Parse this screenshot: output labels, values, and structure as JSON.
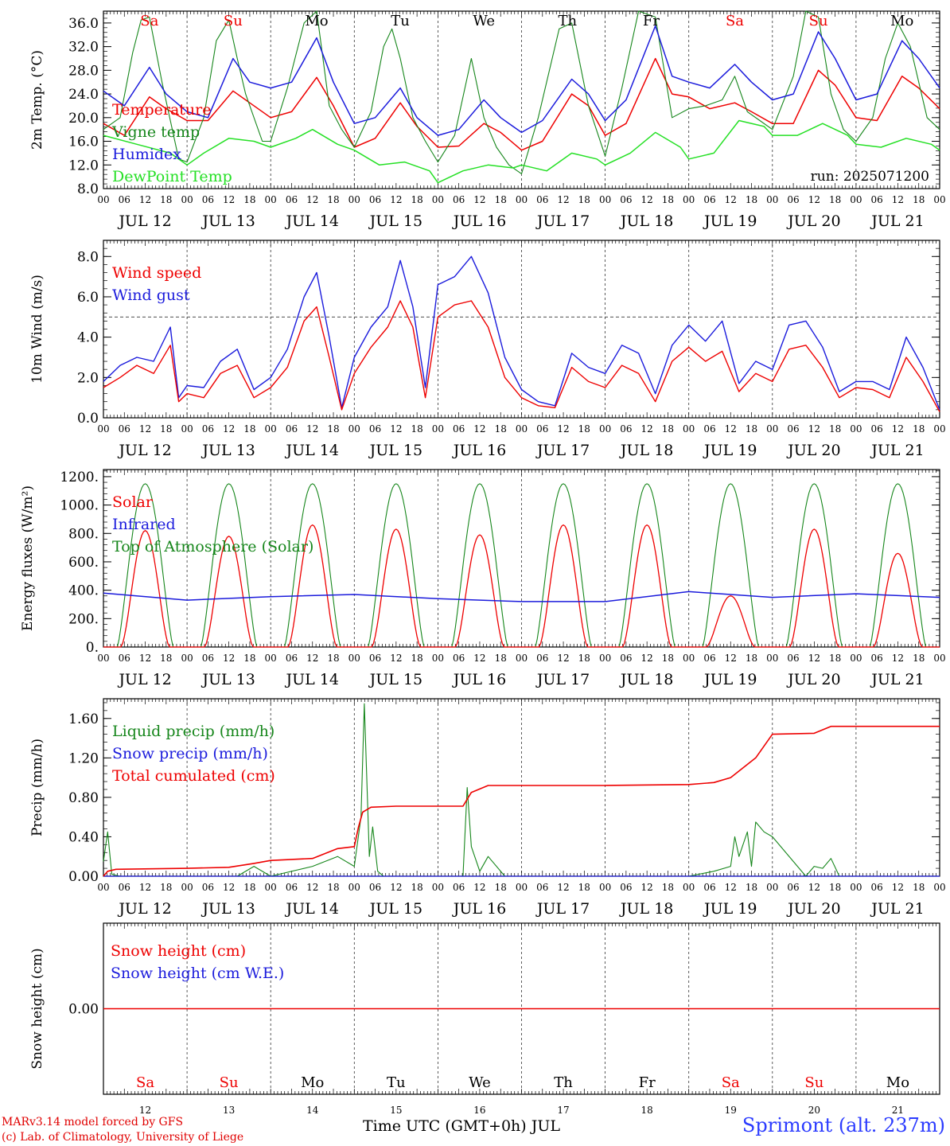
{
  "colors": {
    "red": "#ee0000",
    "green": "#16861b",
    "blue": "#1b1bdc",
    "light_green": "#25e025",
    "weekend": "#ee0000",
    "weekday": "#000000"
  },
  "days": [
    {
      "abbr": "Sa",
      "date": "JUL 12",
      "num": "12",
      "weekend": true
    },
    {
      "abbr": "Su",
      "date": "JUL 13",
      "num": "13",
      "weekend": true
    },
    {
      "abbr": "Mo",
      "date": "JUL 14",
      "num": "14",
      "weekend": false
    },
    {
      "abbr": "Tu",
      "date": "JUL 15",
      "num": "15",
      "weekend": false
    },
    {
      "abbr": "We",
      "date": "JUL 16",
      "num": "16",
      "weekend": false
    },
    {
      "abbr": "Th",
      "date": "JUL 17",
      "num": "17",
      "weekend": false
    },
    {
      "abbr": "Fr",
      "date": "JUL 18",
      "num": "18",
      "weekend": false
    },
    {
      "abbr": "Sa",
      "date": "JUL 19",
      "num": "19",
      "weekend": true
    },
    {
      "abbr": "Su",
      "date": "JUL 20",
      "num": "20",
      "weekend": true
    },
    {
      "abbr": "Mo",
      "date": "JUL 21",
      "num": "21",
      "weekend": false
    }
  ],
  "hour_ticks": [
    "00",
    "06",
    "12",
    "18"
  ],
  "run_label": "run: 2025071200",
  "footer": {
    "line1": "MARv3.14 model forced by GFS",
    "line2": "(c) Lab. of Climatology, University of Liege",
    "xtitle": "Time UTC (GMT+0h) JUL",
    "station": "Sprimont (alt. 237m)"
  },
  "chart_data": [
    {
      "type": "line",
      "ylabel": "2m Temp. (°C)",
      "ylim": [
        8,
        38
      ],
      "yticks": [
        "8.0",
        "12.0",
        "16.0",
        "20.0",
        "24.0",
        "28.0",
        "32.0",
        "36.0"
      ],
      "x_unit": "days since JUL 12 00 UTC (0-10)",
      "series": [
        {
          "name": "Temperature",
          "color": "red",
          "x": [
            0,
            0.25,
            0.55,
            0.75,
            1,
            1.25,
            1.55,
            1.75,
            2,
            2.25,
            2.55,
            2.75,
            3,
            3.25,
            3.55,
            3.75,
            4,
            4.25,
            4.55,
            4.75,
            5,
            5.25,
            5.6,
            5.8,
            6,
            6.25,
            6.6,
            6.8,
            7,
            7.25,
            7.55,
            7.75,
            8,
            8.25,
            8.55,
            8.75,
            9,
            9.25,
            9.55,
            9.75,
            10
          ],
          "y": [
            19,
            17,
            23.5,
            21.5,
            19.5,
            19.5,
            24.5,
            22.5,
            20,
            21,
            26.8,
            22,
            15,
            16.5,
            22.5,
            18.5,
            15,
            15.2,
            19,
            17.5,
            14.5,
            16,
            24,
            22,
            17,
            19,
            30,
            24,
            23.5,
            21.5,
            22.5,
            21,
            19,
            19,
            28,
            25.5,
            20,
            19.5,
            27,
            25,
            21.5
          ]
        },
        {
          "name": "Vigne temp",
          "color": "green",
          "x": [
            0,
            0.2,
            0.35,
            0.45,
            0.55,
            0.7,
            0.9,
            1,
            1.2,
            1.35,
            1.5,
            1.6,
            1.7,
            1.9,
            2,
            2.2,
            2.4,
            2.55,
            2.7,
            2.85,
            3,
            3.2,
            3.35,
            3.45,
            3.55,
            3.7,
            3.85,
            4,
            4.2,
            4.4,
            4.55,
            4.7,
            4.85,
            5,
            5.2,
            5.45,
            5.6,
            5.8,
            6,
            6.2,
            6.4,
            6.6,
            6.8,
            7,
            7.2,
            7.4,
            7.55,
            7.7,
            7.85,
            8,
            8.25,
            8.4,
            8.55,
            8.7,
            8.85,
            9,
            9.2,
            9.35,
            9.5,
            9.65,
            9.85,
            10
          ],
          "y": [
            18,
            20,
            31,
            36.5,
            37,
            26,
            13,
            12.5,
            20,
            33,
            36.5,
            30,
            24,
            16,
            16,
            25,
            36,
            38,
            22,
            18,
            15,
            21,
            32,
            35,
            30,
            20,
            16,
            12.5,
            17,
            30,
            20,
            15,
            12,
            10.5,
            20,
            35,
            36,
            22,
            13.5,
            25,
            38,
            37,
            20,
            21.5,
            22,
            23,
            27,
            21,
            19.5,
            18,
            27,
            39,
            37,
            24,
            18,
            16,
            20,
            30,
            36,
            32,
            20,
            18
          ]
        },
        {
          "name": "Humidex",
          "color": "blue",
          "x": [
            0,
            0.25,
            0.55,
            0.75,
            1,
            1.25,
            1.55,
            1.75,
            2,
            2.25,
            2.55,
            2.75,
            3,
            3.25,
            3.55,
            3.75,
            4,
            4.25,
            4.55,
            4.75,
            5,
            5.25,
            5.6,
            5.8,
            6,
            6.25,
            6.6,
            6.8,
            7,
            7.25,
            7.55,
            7.75,
            8,
            8.25,
            8.55,
            8.75,
            9,
            9.25,
            9.55,
            9.75,
            10
          ],
          "y": [
            24.5,
            22,
            28.5,
            24,
            21,
            20,
            30,
            26,
            25,
            26,
            33.5,
            26,
            19,
            20,
            25,
            20,
            17,
            18,
            23,
            20,
            17.5,
            19.5,
            26.5,
            24,
            19.5,
            23,
            35.5,
            27,
            26,
            25,
            29,
            26,
            23,
            24,
            34.5,
            30,
            23,
            24,
            33,
            30,
            25
          ]
        },
        {
          "name": "DewPoint Temp",
          "color": "light_green",
          "x": [
            0,
            0.4,
            0.8,
            1,
            1.2,
            1.5,
            1.8,
            2,
            2.3,
            2.5,
            2.8,
            3,
            3.3,
            3.6,
            3.9,
            4,
            4.3,
            4.6,
            4.9,
            5,
            5.3,
            5.6,
            5.9,
            6,
            6.3,
            6.6,
            6.9,
            7,
            7.3,
            7.6,
            7.9,
            8,
            8.3,
            8.6,
            8.9,
            9,
            9.3,
            9.6,
            9.9,
            10
          ],
          "y": [
            17,
            15.5,
            14,
            12,
            14,
            16.5,
            16,
            15,
            16.5,
            18,
            15.5,
            14.5,
            12,
            12.5,
            11,
            9,
            11,
            12,
            11.5,
            12,
            11,
            14,
            13,
            12,
            14,
            17.5,
            15,
            13,
            14,
            19.5,
            18.5,
            17,
            17,
            19,
            17,
            15.5,
            15,
            16.5,
            15.5,
            14.5
          ]
        }
      ],
      "legend": [
        "Temperature",
        "Vigne temp",
        "Humidex",
        "DewPoint Temp"
      ]
    },
    {
      "type": "line",
      "ylabel": "10m Wind (m/s)",
      "ylim": [
        0,
        8.8
      ],
      "yticks": [
        "0.0",
        "2.0",
        "4.0",
        "6.0",
        "8.0"
      ],
      "reference_line": 5.0,
      "series": [
        {
          "name": "Wind speed",
          "color": "red",
          "x": [
            0,
            0.2,
            0.4,
            0.6,
            0.8,
            0.9,
            1,
            1.2,
            1.4,
            1.6,
            1.8,
            2,
            2.2,
            2.4,
            2.55,
            2.7,
            2.85,
            3,
            3.2,
            3.4,
            3.55,
            3.7,
            3.85,
            4,
            4.2,
            4.4,
            4.6,
            4.8,
            5,
            5.2,
            5.4,
            5.6,
            5.8,
            6,
            6.2,
            6.4,
            6.6,
            6.8,
            7,
            7.2,
            7.4,
            7.6,
            7.8,
            8,
            8.2,
            8.4,
            8.6,
            8.8,
            9,
            9.2,
            9.4,
            9.6,
            9.8,
            10
          ],
          "y": [
            1.5,
            2.0,
            2.6,
            2.2,
            3.6,
            0.8,
            1.2,
            1.0,
            2.2,
            2.6,
            1.0,
            1.5,
            2.5,
            4.8,
            5.5,
            3.0,
            0.4,
            2.2,
            3.5,
            4.5,
            5.8,
            4.5,
            1.0,
            5.0,
            5.6,
            5.8,
            4.5,
            2.0,
            1.0,
            0.6,
            0.5,
            2.5,
            1.8,
            1.5,
            2.6,
            2.2,
            0.8,
            2.8,
            3.5,
            2.8,
            3.3,
            1.3,
            2.2,
            1.8,
            3.4,
            3.6,
            2.5,
            1.0,
            1.5,
            1.4,
            1.0,
            3.0,
            1.8,
            0.3
          ]
        },
        {
          "name": "Wind gust",
          "color": "blue",
          "x": [
            0,
            0.2,
            0.4,
            0.6,
            0.8,
            0.9,
            1,
            1.2,
            1.4,
            1.6,
            1.8,
            2,
            2.2,
            2.4,
            2.55,
            2.7,
            2.85,
            3,
            3.2,
            3.4,
            3.55,
            3.7,
            3.85,
            4,
            4.2,
            4.4,
            4.6,
            4.8,
            5,
            5.2,
            5.4,
            5.6,
            5.8,
            6,
            6.2,
            6.4,
            6.6,
            6.8,
            7,
            7.2,
            7.4,
            7.6,
            7.8,
            8,
            8.2,
            8.4,
            8.6,
            8.8,
            9,
            9.2,
            9.4,
            9.6,
            9.8,
            10
          ],
          "y": [
            1.8,
            2.6,
            3.0,
            2.8,
            4.5,
            1.0,
            1.6,
            1.5,
            2.8,
            3.4,
            1.4,
            2.0,
            3.4,
            6.0,
            7.2,
            4.0,
            0.5,
            3.0,
            4.5,
            5.5,
            7.8,
            5.5,
            1.5,
            6.6,
            7.0,
            8.0,
            6.2,
            3.0,
            1.4,
            0.8,
            0.6,
            3.2,
            2.5,
            2.2,
            3.6,
            3.2,
            1.2,
            3.6,
            4.6,
            3.8,
            4.8,
            1.7,
            2.8,
            2.4,
            4.6,
            4.8,
            3.5,
            1.3,
            1.8,
            1.8,
            1.4,
            4.0,
            2.5,
            0.4
          ]
        }
      ],
      "legend": [
        "Wind speed",
        "Wind gust"
      ]
    },
    {
      "type": "line",
      "ylabel": "Energy fluxes (W/m²)",
      "ylim": [
        0,
        1250
      ],
      "yticks": [
        "0.",
        "200.",
        "400.",
        "600.",
        "800.",
        "1000.",
        "1200."
      ],
      "series": [
        {
          "name": "Solar",
          "color": "red",
          "peaks": [
            820,
            780,
            860,
            830,
            790,
            860,
            860,
            360,
            830,
            660
          ]
        },
        {
          "name": "Infrared",
          "color": "blue",
          "x": [
            0,
            1,
            2,
            3,
            4,
            5,
            6,
            7,
            8,
            9,
            10
          ],
          "y": [
            380,
            330,
            355,
            370,
            340,
            320,
            320,
            390,
            350,
            375,
            350
          ]
        },
        {
          "name": "Top of Atmosphere (Solar)",
          "color": "green",
          "peaks": [
            1150,
            1150,
            1150,
            1150,
            1150,
            1150,
            1150,
            1150,
            1150,
            1150
          ]
        }
      ],
      "legend": [
        "Solar",
        "Infrared",
        "Top of Atmosphere (Solar)"
      ]
    },
    {
      "type": "line",
      "ylabel": "Precip (mm/h)",
      "ylim": [
        0,
        1.8
      ],
      "yticks": [
        "0.00",
        "0.40",
        "0.80",
        "1.20",
        "1.60"
      ],
      "series": [
        {
          "name": "Liquid precip (mm/h)",
          "color": "green",
          "x": [
            0,
            0.05,
            0.1,
            0.2,
            1.6,
            1.8,
            2.0,
            2.5,
            2.8,
            3.0,
            3.08,
            3.12,
            3.18,
            3.22,
            3.28,
            3.35,
            3.5,
            4.3,
            4.35,
            4.4,
            4.5,
            4.6,
            4.8,
            7.0,
            7.3,
            7.5,
            7.55,
            7.6,
            7.7,
            7.75,
            7.8,
            7.9,
            8.0,
            8.4,
            8.5,
            8.6,
            8.7,
            8.8,
            9,
            10
          ],
          "y": [
            0.15,
            0.45,
            0.02,
            0,
            0,
            0.1,
            0,
            0.1,
            0.2,
            0.1,
            0.6,
            1.75,
            0.2,
            0.5,
            0.05,
            0,
            0,
            0,
            0.9,
            0.3,
            0.05,
            0.2,
            0,
            0,
            0.05,
            0.1,
            0.4,
            0.2,
            0.45,
            0.1,
            0.55,
            0.45,
            0.4,
            0,
            0.1,
            0.08,
            0.18,
            0,
            0,
            0
          ]
        },
        {
          "name": "Snow precip (mm/h)",
          "color": "blue",
          "x": [
            0,
            10
          ],
          "y": [
            0,
            0
          ]
        },
        {
          "name": "Total cumulated (cm)",
          "color": "red",
          "x": [
            0,
            0.05,
            0.15,
            1,
            1.5,
            1.8,
            2,
            2.5,
            2.8,
            3.0,
            3.05,
            3.1,
            3.2,
            3.5,
            4.3,
            4.4,
            4.6,
            5,
            6,
            7,
            7.3,
            7.5,
            7.8,
            8,
            8.5,
            8.7,
            9,
            10
          ],
          "y": [
            0,
            0.05,
            0.07,
            0.08,
            0.09,
            0.13,
            0.16,
            0.18,
            0.28,
            0.3,
            0.5,
            0.65,
            0.7,
            0.71,
            0.71,
            0.85,
            0.92,
            0.92,
            0.92,
            0.93,
            0.95,
            1.0,
            1.2,
            1.44,
            1.45,
            1.52,
            1.52,
            1.52
          ]
        }
      ],
      "legend": [
        "Liquid precip (mm/h)",
        "Snow precip (mm/h)",
        "Total cumulated (cm)"
      ]
    },
    {
      "type": "line",
      "ylabel": "Snow height (cm)",
      "yticks": [
        "0.00"
      ],
      "series": [
        {
          "name": "Snow height (cm)",
          "color": "red",
          "x": [
            0,
            10
          ],
          "y": [
            0,
            0
          ]
        },
        {
          "name": "Snow height (cm W.E.)",
          "color": "blue",
          "x": [
            0,
            10
          ],
          "y": [
            0,
            0
          ]
        }
      ],
      "legend": [
        "Snow height (cm)",
        "Snow height (cm W.E.)"
      ]
    }
  ]
}
